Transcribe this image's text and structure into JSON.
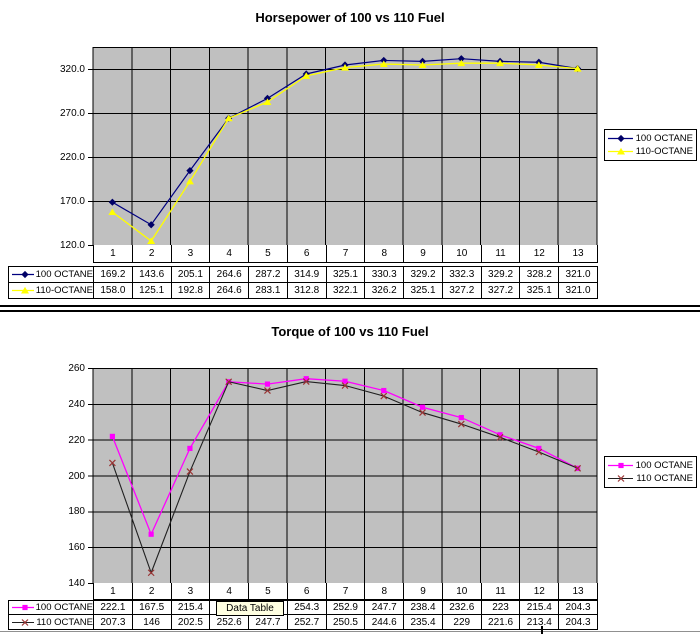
{
  "chart_data": [
    {
      "type": "line",
      "title": "Horsepower of 100 vs 110 Fuel",
      "categories": [
        "1",
        "2",
        "3",
        "4",
        "5",
        "6",
        "7",
        "8",
        "9",
        "10",
        "11",
        "12",
        "13"
      ],
      "ylim": [
        120,
        345
      ],
      "yticks": [
        {
          "v": 320,
          "label": "320.0"
        },
        {
          "v": 270,
          "label": "270.0"
        },
        {
          "v": 220,
          "label": "220.0"
        },
        {
          "v": 170,
          "label": "170.0"
        },
        {
          "v": 120,
          "label": "120.0"
        }
      ],
      "grid": true,
      "plot_bg": "#c0c0c0",
      "gridline_color": "#000000",
      "legend_position": "right",
      "series": [
        {
          "name": "100 OCTANE",
          "color": "#000080",
          "marker": "diamond",
          "marker_color": "#000066",
          "line_width": 1.2,
          "values": [
            169.2,
            143.6,
            205.1,
            264.6,
            287.2,
            314.9,
            325.1,
            330.3,
            329.2,
            332.3,
            329.2,
            328.2,
            321.0
          ],
          "display": [
            "169.2",
            "143.6",
            "205.1",
            "264.6",
            "287.2",
            "314.9",
            "325.1",
            "330.3",
            "329.2",
            "332.3",
            "329.2",
            "328.2",
            "321.0"
          ]
        },
        {
          "name": "110-OCTANE",
          "color": "#ffff00",
          "marker": "triangle",
          "marker_color": "#ffff00",
          "line_width": 1.3,
          "values": [
            158.0,
            125.1,
            192.8,
            264.6,
            283.1,
            312.8,
            322.1,
            326.2,
            325.1,
            327.2,
            327.2,
            325.1,
            321.0
          ],
          "display": [
            "158.0",
            "125.1",
            "192.8",
            "264.6",
            "283.1",
            "312.8",
            "322.1",
            "326.2",
            "325.1",
            "327.2",
            "327.2",
            "325.1",
            "321.0"
          ]
        }
      ]
    },
    {
      "type": "line",
      "title": "Torque of 100 vs 110 Fuel",
      "categories": [
        "1",
        "2",
        "3",
        "4",
        "5",
        "6",
        "7",
        "8",
        "9",
        "10",
        "11",
        "12",
        "13"
      ],
      "ylim": [
        140,
        260
      ],
      "yticks": [
        {
          "v": 260,
          "label": "260"
        },
        {
          "v": 240,
          "label": "240"
        },
        {
          "v": 220,
          "label": "220"
        },
        {
          "v": 200,
          "label": "200"
        },
        {
          "v": 180,
          "label": "180"
        },
        {
          "v": 160,
          "label": "160"
        },
        {
          "v": 140,
          "label": "140"
        }
      ],
      "grid": true,
      "plot_bg": "#c0c0c0",
      "gridline_color": "#000000",
      "legend_position": "right",
      "overlay_tooltip": "Data Table",
      "series": [
        {
          "name": "100 OCTANE",
          "color": "#ff00ff",
          "marker": "square",
          "marker_color": "#ff00ff",
          "line_width": 1.3,
          "values": [
            222.1,
            167.5,
            215.4,
            252.6,
            251.3,
            254.3,
            252.9,
            247.7,
            238.4,
            232.6,
            223,
            215.4,
            204.3
          ],
          "display": [
            "222.1",
            "167.5",
            "215.4",
            "252.6",
            "251.3",
            "254.3",
            "252.9",
            "247.7",
            "238.4",
            "232.6",
            "223",
            "215.4",
            "204.3"
          ]
        },
        {
          "name": "110 OCTANE",
          "color": "#202020",
          "marker": "x",
          "marker_color": "#993333",
          "line_width": 1.1,
          "values": [
            207.3,
            146,
            202.5,
            252.6,
            247.7,
            252.7,
            250.5,
            244.6,
            235.4,
            229,
            221.6,
            213.4,
            204.3
          ],
          "display": [
            "207.3",
            "146",
            "202.5",
            "252.6",
            "247.7",
            "252.7",
            "250.5",
            "244.6",
            "235.4",
            "229",
            "221.6",
            "213.4",
            "204.3"
          ]
        }
      ]
    }
  ]
}
